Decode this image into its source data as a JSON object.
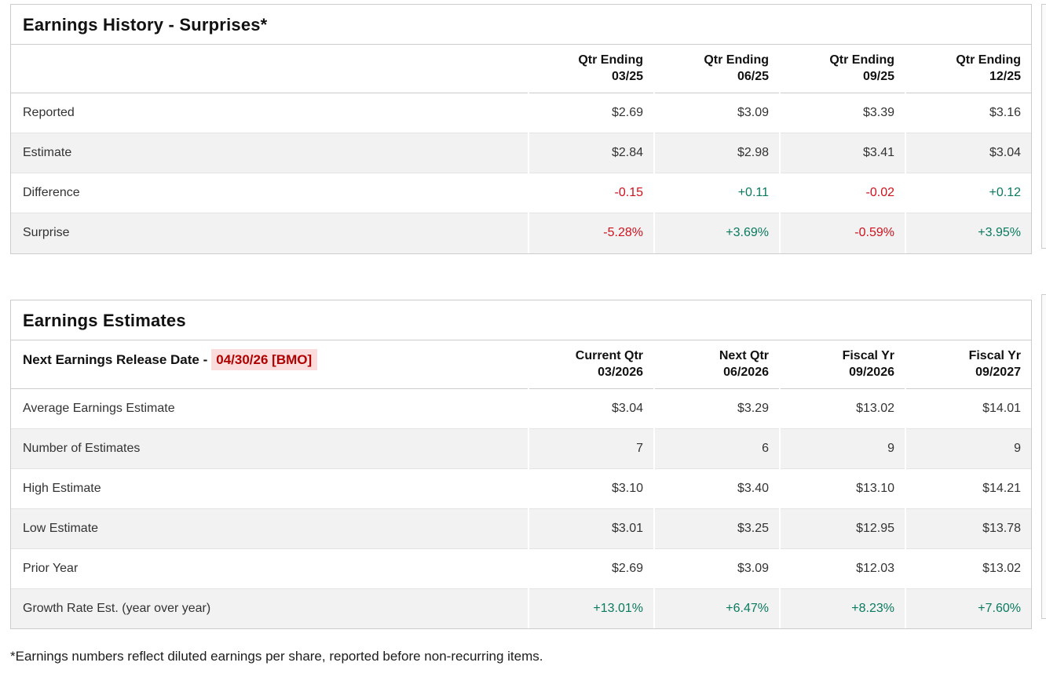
{
  "colors": {
    "positive_green": "#0a7a5f",
    "negative_red": "#d0121d",
    "release_date_text": "#b00000",
    "release_date_highlight": "#fbdcdc",
    "row_alt_bg": "#f2f2f2",
    "card_border": "#cccccc"
  },
  "earnings_history": {
    "title": "Earnings History - Surprises*",
    "columns": [
      {
        "line1": "Qtr Ending",
        "line2": "03/25"
      },
      {
        "line1": "Qtr Ending",
        "line2": "06/25"
      },
      {
        "line1": "Qtr Ending",
        "line2": "09/25"
      },
      {
        "line1": "Qtr Ending",
        "line2": "12/25"
      }
    ],
    "rows": [
      {
        "label": "Reported",
        "values": [
          "$2.69",
          "$3.09",
          "$3.39",
          "$3.16"
        ]
      },
      {
        "label": "Estimate",
        "values": [
          "$2.84",
          "$2.98",
          "$3.41",
          "$3.04"
        ]
      },
      {
        "label": "Difference",
        "values": [
          "-0.15",
          "+0.11",
          "-0.02",
          "+0.12"
        ]
      },
      {
        "label": "Surprise",
        "values": [
          "-5.28%",
          "+3.69%",
          "-0.59%",
          "+3.95%"
        ]
      }
    ]
  },
  "earnings_estimates": {
    "title": "Earnings Estimates",
    "release_date_label": "Next Earnings Release Date -",
    "release_date_value": "04/30/26 [BMO]",
    "columns": [
      {
        "line1": "Current Qtr",
        "line2": "03/2026"
      },
      {
        "line1": "Next Qtr",
        "line2": "06/2026"
      },
      {
        "line1": "Fiscal Yr",
        "line2": "09/2026"
      },
      {
        "line1": "Fiscal Yr",
        "line2": "09/2027"
      }
    ],
    "rows": [
      {
        "label": "Average Earnings Estimate",
        "values": [
          "$3.04",
          "$3.29",
          "$13.02",
          "$14.01"
        ]
      },
      {
        "label": "Number of Estimates",
        "values": [
          "7",
          "6",
          "9",
          "9"
        ]
      },
      {
        "label": "High Estimate",
        "values": [
          "$3.10",
          "$3.40",
          "$13.10",
          "$14.21"
        ]
      },
      {
        "label": "Low Estimate",
        "values": [
          "$3.01",
          "$3.25",
          "$12.95",
          "$13.78"
        ]
      },
      {
        "label": "Prior Year",
        "values": [
          "$2.69",
          "$3.09",
          "$12.03",
          "$13.02"
        ]
      },
      {
        "label": "Growth Rate Est. (year over year)",
        "values": [
          "+13.01%",
          "+6.47%",
          "+8.23%",
          "+7.60%"
        ]
      }
    ]
  },
  "footnote": "*Earnings numbers reflect diluted earnings per share, reported before non-recurring items."
}
